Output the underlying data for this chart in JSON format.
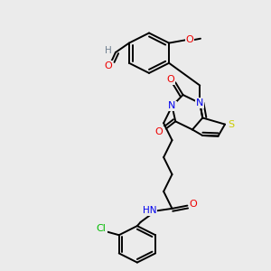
{
  "background_color": "#ebebeb",
  "atom_colors": {
    "C": "#000000",
    "N": "#0000ee",
    "O": "#ee0000",
    "S": "#cccc00",
    "H": "#708090",
    "Cl": "#00bb00"
  },
  "bond_color": "#000000",
  "figsize": [
    3.0,
    3.0
  ],
  "dpi": 100
}
